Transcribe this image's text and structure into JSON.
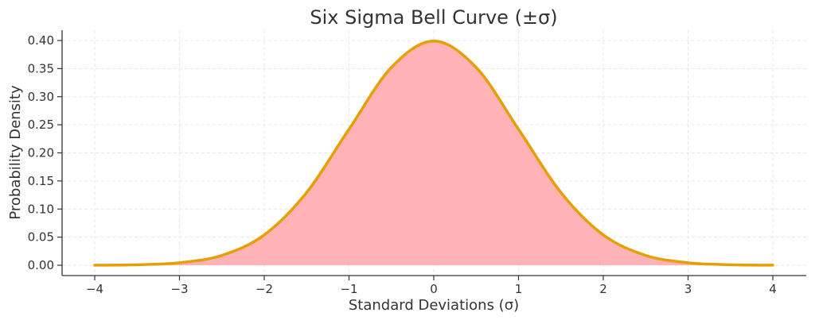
{
  "chart_data": {
    "type": "area",
    "title": "Six Sigma Bell Curve (±σ)",
    "xlabel": "Standard Deviations (σ)",
    "ylabel": "Probability Density",
    "xlim": [
      -4,
      4
    ],
    "ylim": [
      0,
      0.4
    ],
    "x_ticks": [
      -4,
      -3,
      -2,
      -1,
      0,
      1,
      2,
      3,
      4
    ],
    "x_tick_labels": [
      "−4",
      "−3",
      "−2",
      "−1",
      "0",
      "1",
      "2",
      "3",
      "4"
    ],
    "y_ticks": [
      0,
      0.05,
      0.1,
      0.15,
      0.2,
      0.25,
      0.3,
      0.35,
      0.4
    ],
    "y_tick_labels": [
      "0.00",
      "0.05",
      "0.10",
      "0.15",
      "0.20",
      "0.25",
      "0.30",
      "0.35",
      "0.40"
    ],
    "grid": true,
    "series": [
      {
        "x": [
          -4,
          -3.5,
          -3,
          -2.5,
          -2,
          -1.5,
          -1,
          -0.5,
          0,
          0.5,
          1,
          1.5,
          2,
          2.5,
          3,
          3.5,
          4
        ],
        "y": [
          0.0001,
          0.0009,
          0.0044,
          0.0175,
          0.054,
          0.1295,
          0.242,
          0.3521,
          0.3989,
          0.3521,
          0.242,
          0.1295,
          0.054,
          0.0175,
          0.0044,
          0.0009,
          0.0001
        ],
        "line_color": "#e69f00",
        "fill_color": "#ffb3b6"
      }
    ]
  }
}
